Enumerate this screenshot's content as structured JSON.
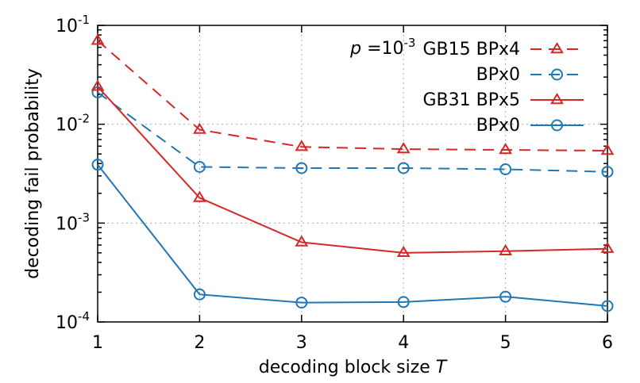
{
  "chart_data": {
    "type": "line",
    "xlabel_text": "decoding block size",
    "xlabel_var": "T",
    "ylabel": "decoding fail probability",
    "x": [
      1,
      2,
      3,
      4,
      5,
      6
    ],
    "xlim": [
      1,
      6
    ],
    "ylim": [
      0.0001,
      0.1
    ],
    "y_scale": "log",
    "grid": true,
    "x_ticks": [
      "1",
      "2",
      "3",
      "4",
      "5",
      "6"
    ],
    "y_ticks": [
      {
        "value": 0.1,
        "base": "10",
        "exp": "-1"
      },
      {
        "value": 0.01,
        "base": "10",
        "exp": "-2"
      },
      {
        "value": 0.001,
        "base": "10",
        "exp": "-3"
      },
      {
        "value": 0.0001,
        "base": "10",
        "exp": "-4"
      }
    ],
    "legend_placement": "top-right",
    "legend_header": {
      "p": "p",
      "eq": " =10",
      "exp": "-3"
    },
    "series": [
      {
        "name": "GB15 BPx4",
        "color": "#d62728",
        "dash": true,
        "marker": "triangle",
        "values": [
          0.07,
          0.0088,
          0.0059,
          0.0056,
          0.0055,
          0.0054
        ]
      },
      {
        "name": "BPx0",
        "color": "#1f77b4",
        "dash": true,
        "marker": "circle",
        "values": [
          0.021,
          0.0037,
          0.0036,
          0.0036,
          0.0035,
          0.0033
        ]
      },
      {
        "name": "GB31 BPx5",
        "color": "#d62728",
        "dash": false,
        "marker": "triangle",
        "values": [
          0.024,
          0.0018,
          0.00064,
          0.0005,
          0.00052,
          0.00055
        ]
      },
      {
        "name": "BPx0",
        "color": "#1f77b4",
        "dash": false,
        "marker": "circle",
        "values": [
          0.0039,
          0.00019,
          0.000157,
          0.000159,
          0.00018,
          0.000145
        ]
      }
    ]
  }
}
